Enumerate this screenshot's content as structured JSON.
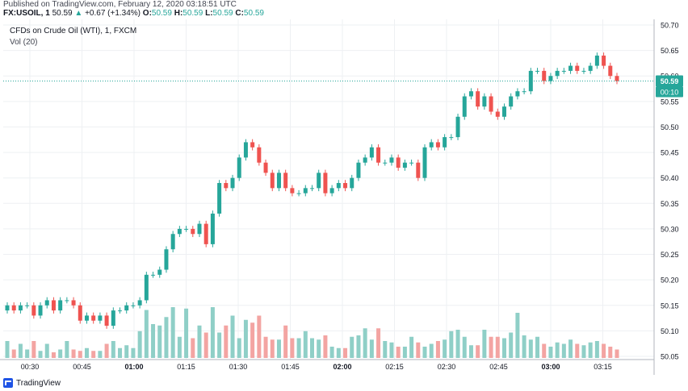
{
  "header": {
    "published": "Published on TradingView.com, February 12, 2020 03:18:51 UTC",
    "symbol": "FX:USOIL, 1",
    "last": "50.59",
    "change_arrow": "▲",
    "change": "+0.67 (+1.34%)",
    "o_label": "O:",
    "o": "50.59",
    "h_label": "H:",
    "h": "50.59",
    "l_label": "L:",
    "l": "50.59",
    "c_label": "C:",
    "c": "50.59"
  },
  "legend": {
    "title": "CFDs on Crude Oil (WTI), 1, FXCM",
    "volume": "Vol (20)"
  },
  "price_tag": {
    "price": "50.59",
    "countdown": "00:10"
  },
  "footer": {
    "brand": "TradingView"
  },
  "colors": {
    "up": "#26a69a",
    "down": "#ef5350",
    "vol_up": "#8fcfc7",
    "vol_down": "#f3a4a2",
    "grid": "#eef0f3",
    "price_line": "#26a69a"
  },
  "chart_data": {
    "type": "candlestick",
    "y_axis": {
      "min": 50.05,
      "max": 50.7,
      "ticks": [
        "50.70",
        "50.65",
        "50.60",
        "50.55",
        "50.50",
        "50.45",
        "50.40",
        "50.35",
        "50.30",
        "50.25",
        "50.20",
        "50.15",
        "50.10",
        "50.05"
      ]
    },
    "x_axis": {
      "ticks": [
        "00:30",
        "00:45",
        "01:00",
        "01:15",
        "01:30",
        "01:45",
        "02:00",
        "02:15",
        "02:30",
        "02:45",
        "03:00",
        "03:15"
      ],
      "bold": [
        "01:00",
        "02:00",
        "03:00"
      ]
    },
    "candles_close": [
      50.15,
      50.14,
      50.15,
      50.15,
      50.13,
      50.15,
      50.16,
      50.14,
      50.16,
      50.16,
      50.15,
      50.12,
      50.13,
      50.12,
      50.13,
      50.11,
      50.14,
      50.14,
      50.15,
      50.15,
      50.16,
      50.21,
      50.21,
      50.22,
      50.26,
      50.29,
      50.3,
      50.3,
      50.29,
      50.31,
      50.27,
      50.33,
      50.39,
      50.38,
      50.4,
      50.44,
      50.47,
      50.46,
      50.43,
      50.41,
      50.38,
      50.41,
      50.38,
      50.37,
      50.37,
      50.38,
      50.38,
      50.41,
      50.37,
      50.38,
      50.39,
      50.38,
      50.4,
      50.43,
      50.44,
      50.46,
      50.43,
      50.43,
      50.44,
      50.42,
      50.43,
      50.43,
      50.4,
      50.46,
      50.47,
      50.46,
      50.48,
      50.48,
      50.52,
      50.56,
      50.57,
      50.54,
      50.56,
      50.53,
      50.52,
      50.54,
      50.56,
      50.57,
      50.57,
      50.61,
      50.61,
      50.59,
      50.6,
      50.61,
      50.61,
      50.62,
      50.61,
      50.61,
      50.62,
      50.64,
      50.62,
      50.6,
      50.59
    ],
    "volumes": [
      12,
      6,
      10,
      6,
      12,
      5,
      10,
      4,
      6,
      12,
      6,
      5,
      7,
      5,
      5,
      10,
      12,
      7,
      9,
      7,
      19,
      34,
      24,
      23,
      29,
      36,
      15,
      35,
      14,
      23,
      18,
      36,
      18,
      23,
      30,
      14,
      27,
      25,
      30,
      15,
      13,
      13,
      23,
      14,
      14,
      19,
      14,
      13,
      16,
      8,
      7,
      7,
      15,
      16,
      21,
      13,
      21,
      12,
      11,
      8,
      8,
      15,
      11,
      8,
      10,
      12,
      13,
      19,
      20,
      15,
      9,
      9,
      20,
      15,
      15,
      14,
      18,
      32,
      16,
      13,
      15,
      10,
      8,
      11,
      10,
      13,
      10,
      9,
      11,
      12,
      10,
      8,
      6
    ]
  }
}
